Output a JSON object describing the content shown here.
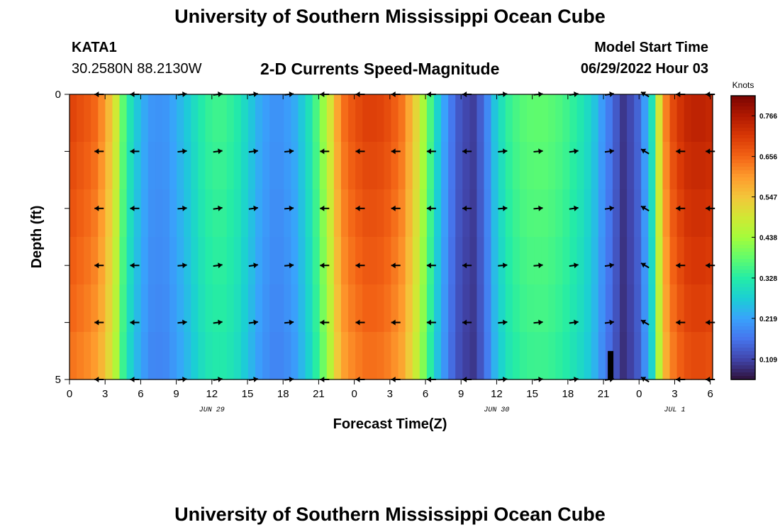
{
  "header": {
    "title": "University of Southern Mississippi Ocean Cube",
    "station": "KATA1",
    "coordinates": "30.2580N  88.2130W",
    "subtitle": "2-D Currents Speed-Magnitude",
    "model_start_label": "Model Start Time",
    "model_start_value": "06/29/2022 Hour 03"
  },
  "footer": {
    "title": "University of Southern Mississippi Ocean Cube"
  },
  "colors": {
    "palette": [
      "#30123b",
      "#4145ab",
      "#4675ed",
      "#39a2fc",
      "#1bcfd4",
      "#24eca6",
      "#61fc6c",
      "#a4fc3b",
      "#d1e834",
      "#f3c63a",
      "#fe9b2d",
      "#f36315",
      "#d93806",
      "#b11901",
      "#7a0403"
    ],
    "arrow": "#000000",
    "background": "#ffffff"
  },
  "chart_data": {
    "type": "heatmap",
    "title": "2-D Currents Speed-Magnitude",
    "xlabel": "Forecast Time(Z)",
    "ylabel": "Depth (ft)",
    "x_unit": "hours since 06/29/2022 00Z",
    "xlim": [
      0,
      54.2
    ],
    "ylim": [
      0,
      5
    ],
    "y_ticks": [
      0,
      1,
      2,
      3,
      4,
      5
    ],
    "y_tick_labels": [
      "0",
      "",
      "",
      "",
      "",
      "5"
    ],
    "x_ticks": [
      0,
      3,
      6,
      9,
      12,
      15,
      18,
      21,
      24,
      27,
      30,
      33,
      36,
      39,
      42,
      45,
      48,
      51,
      54
    ],
    "x_tick_labels": [
      "0",
      "3",
      "6",
      "9",
      "12",
      "15",
      "18",
      "21",
      "0",
      "3",
      "6",
      "9",
      "12",
      "15",
      "18",
      "21",
      "0",
      "3",
      "6"
    ],
    "date_labels": [
      {
        "x": 12,
        "label": "JUN 29"
      },
      {
        "x": 36,
        "label": "JUN 30"
      },
      {
        "x": 51,
        "label": "JUL 1"
      }
    ],
    "colorbar": {
      "label": "Knots",
      "min": 0.054,
      "max": 0.82,
      "ticks": [
        0.109,
        0.219,
        0.328,
        0.438,
        0.547,
        0.656,
        0.766
      ]
    },
    "speed_profile": {
      "x": [
        0,
        1,
        2,
        3,
        4,
        4.5,
        5,
        6,
        7,
        8,
        9,
        10,
        11,
        12,
        13,
        14,
        15,
        16,
        17,
        18,
        19,
        20,
        21,
        22,
        22.5,
        23,
        24,
        25,
        26,
        27,
        28,
        29,
        30,
        31,
        32,
        33,
        34,
        35,
        36,
        37,
        38,
        39,
        40,
        41,
        42,
        43,
        44,
        44.5,
        45,
        46,
        46.5,
        47,
        48,
        49,
        50,
        51,
        52,
        53,
        54,
        54.2
      ],
      "surface": [
        0.7,
        0.68,
        0.66,
        0.6,
        0.48,
        0.38,
        0.32,
        0.24,
        0.2,
        0.2,
        0.23,
        0.27,
        0.32,
        0.35,
        0.35,
        0.33,
        0.28,
        0.23,
        0.2,
        0.2,
        0.23,
        0.29,
        0.38,
        0.5,
        0.58,
        0.64,
        0.68,
        0.7,
        0.7,
        0.68,
        0.64,
        0.55,
        0.42,
        0.28,
        0.18,
        0.12,
        0.1,
        0.16,
        0.28,
        0.34,
        0.37,
        0.38,
        0.38,
        0.37,
        0.35,
        0.32,
        0.28,
        0.24,
        0.2,
        0.14,
        0.09,
        0.1,
        0.15,
        0.28,
        0.6,
        0.7,
        0.74,
        0.75,
        0.74,
        0.7
      ],
      "depth_factors": [
        1.0,
        0.985,
        0.97,
        0.955,
        0.94,
        0.92
      ]
    },
    "anomaly": {
      "x": 45.6,
      "depth_from": 4.5,
      "depth_to": 5,
      "color": "#000000"
    },
    "arrows": {
      "x": [
        2.5,
        5.5,
        9.5,
        12.5,
        15.5,
        18.5,
        21.5,
        24.5,
        27.5,
        30.5,
        33.5,
        36.5,
        39.5,
        42.5,
        45.5,
        48.5,
        51.5,
        54
      ],
      "depths": [
        0,
        1,
        2,
        3,
        4,
        5
      ],
      "direction_deg": [
        180,
        180,
        5,
        8,
        8,
        5,
        180,
        180,
        180,
        180,
        180,
        5,
        5,
        8,
        8,
        150,
        180,
        180
      ]
    }
  }
}
